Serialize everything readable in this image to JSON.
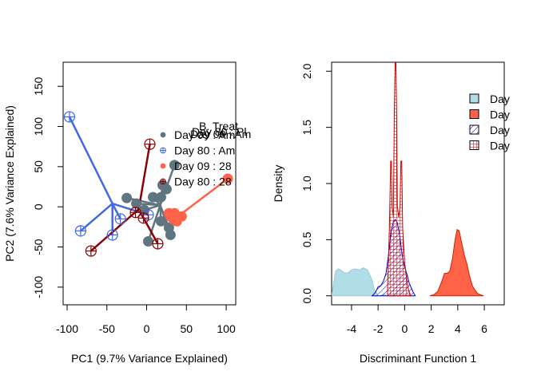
{
  "chart_data": [
    {
      "type": "scatter",
      "xlabel": "PC1 (9.7% Variance Explained)",
      "ylabel": "PC2 (7.6% Variance Explained)",
      "xlim": [
        -105,
        112
      ],
      "ylim": [
        -122,
        180
      ],
      "xticks": [
        -100,
        -50,
        0,
        50,
        100
      ],
      "xtick_labels": [
        "-100",
        "-50",
        "0",
        "50",
        "100"
      ],
      "yticks": [
        -100,
        -50,
        0,
        50,
        100,
        150
      ],
      "ytick_labels": [
        "-100",
        "-50",
        "0",
        "50",
        "100",
        "150"
      ],
      "legend": {
        "overprinted_title": [
          "B. Treat",
          "Day 09 : Am",
          "Day 80 : Pl"
        ],
        "placement": "right",
        "entries": [
          {
            "label": "Day 09 : Am",
            "marker": "filled-circle",
            "color": "#5F7580"
          },
          {
            "label": "Day 80 : Am",
            "marker": "crossed-circle",
            "color": "#4169E1"
          },
          {
            "label": "Day 09 : 28",
            "marker": "filled-circle",
            "color": "#FF6347"
          },
          {
            "label": "Day 80 : 28",
            "marker": "crossed-circle",
            "color": "#8B0000"
          }
        ]
      },
      "series": [
        {
          "group": "Day 09 : Am",
          "marker": "filled-circle",
          "color": "#5F7580",
          "centroid": [
            17,
            2
          ],
          "points": [
            [
              -25,
              11
            ],
            [
              -13,
              4
            ],
            [
              -3,
              -4
            ],
            [
              8,
              12
            ],
            [
              18,
              12
            ],
            [
              25,
              22
            ],
            [
              35,
              52
            ],
            [
              20,
              27
            ],
            [
              30,
              -35
            ],
            [
              2,
              -43
            ],
            [
              18,
              -18
            ],
            [
              28,
              -26
            ]
          ]
        },
        {
          "group": "Day 80 : Am",
          "marker": "crossed-circle",
          "color": "#4169E1",
          "centroid": [
            -43,
            4
          ],
          "points": [
            [
              -97,
              112
            ],
            [
              -83,
              -30
            ],
            [
              -43,
              -35
            ],
            [
              -33,
              -15
            ],
            [
              2,
              -10
            ]
          ]
        },
        {
          "group": "Day 09 : 28",
          "marker": "filled-circle",
          "color": "#FF6347",
          "centroid": [
            38,
            -13
          ],
          "points": [
            [
              102,
              35
            ],
            [
              30,
              -12
            ],
            [
              35,
              -8
            ],
            [
              40,
              -13
            ],
            [
              44,
              -12
            ],
            [
              38,
              -18
            ],
            [
              33,
              -15
            ],
            [
              28,
              -8
            ]
          ]
        },
        {
          "group": "Day 80 : 28",
          "marker": "crossed-circle",
          "color": "#8B0000",
          "centroid": [
            -10,
            -3
          ],
          "points": [
            [
              4,
              78
            ],
            [
              -70,
              -55
            ],
            [
              14,
              -46
            ],
            [
              -4,
              -14
            ],
            [
              -14,
              -7
            ]
          ]
        }
      ]
    },
    {
      "type": "area",
      "xlabel": "Discriminant Function 1",
      "ylabel": "Density",
      "xlim": [
        -5.5,
        7.5
      ],
      "ylim": [
        -0.08,
        2.08
      ],
      "xticks": [
        -4,
        -2,
        0,
        2,
        4,
        6
      ],
      "xtick_labels": [
        "-4",
        "-2",
        "0",
        "2",
        "4",
        "6"
      ],
      "yticks": [
        0,
        0.5,
        1,
        1.5,
        2
      ],
      "ytick_labels": [
        "0.0",
        "0.5",
        "1.0",
        "1.5",
        "2.0"
      ],
      "legend": {
        "placement": "top-right",
        "entries": [
          {
            "label": "Day",
            "fill": "#B0DDE6",
            "border": "#000000",
            "hatch": false
          },
          {
            "label": "Day",
            "fill": "#FF6347",
            "border": "#000000",
            "hatch": false
          },
          {
            "label": "Day",
            "fill": "#0000CC",
            "border": "#000000",
            "hatch": true
          },
          {
            "label": "Day",
            "fill": "#CC0000",
            "border": "#000000",
            "hatch": true
          }
        ]
      },
      "series": [
        {
          "group": "light blue",
          "fill": "#B0DDE6",
          "stroke": "#9CC8D2",
          "hatch": false,
          "x": [
            -5.5,
            -5.2,
            -5.0,
            -4.8,
            -4.5,
            -4.2,
            -4.0,
            -3.7,
            -3.4,
            -3.1,
            -2.8,
            -2.6,
            -2.45,
            -2.3,
            -2.15,
            -2.0,
            -1.85,
            -1.7,
            -1.55,
            -1.4
          ],
          "y": [
            0.0,
            0.22,
            0.24,
            0.23,
            0.2,
            0.21,
            0.23,
            0.24,
            0.23,
            0.25,
            0.23,
            0.18,
            0.14,
            0.06,
            0.03,
            0.0,
            0.0,
            0.01,
            0.02,
            0.0
          ]
        },
        {
          "group": "tomato",
          "fill": "#FF6347",
          "stroke": "#CC2200",
          "hatch": false,
          "x": [
            1.9,
            2.2,
            2.5,
            2.8,
            3.0,
            3.2,
            3.4,
            3.6,
            3.8,
            3.95,
            4.1,
            4.3,
            4.5,
            4.7,
            4.9,
            5.1,
            5.3,
            5.5,
            5.7,
            5.95
          ],
          "y": [
            0.0,
            0.01,
            0.04,
            0.13,
            0.2,
            0.2,
            0.22,
            0.33,
            0.5,
            0.59,
            0.58,
            0.47,
            0.36,
            0.28,
            0.17,
            0.09,
            0.05,
            0.02,
            0.01,
            0.0
          ]
        },
        {
          "group": "blue hatched",
          "fill": "#0000CC",
          "stroke": "#0000CC",
          "hatch": true,
          "x": [
            -2.45,
            -2.2,
            -2.0,
            -1.8,
            -1.6,
            -1.4,
            -1.2,
            -1.0,
            -0.85,
            -0.7,
            -0.55,
            -0.4,
            -0.25,
            -0.1,
            0.05,
            0.2,
            0.35,
            0.5,
            0.65,
            0.8
          ],
          "y": [
            0.0,
            0.03,
            0.08,
            0.09,
            0.13,
            0.2,
            0.38,
            0.58,
            0.66,
            0.68,
            0.65,
            0.56,
            0.42,
            0.3,
            0.24,
            0.18,
            0.11,
            0.07,
            0.03,
            0.0
          ]
        },
        {
          "group": "red hatched",
          "fill": "#CC0000",
          "stroke": "#CC0000",
          "hatch": true,
          "x": [
            -1.3,
            -1.15,
            -1.05,
            -1.0,
            -0.95,
            -0.85,
            -0.78,
            -0.72,
            -0.66,
            -0.6,
            -0.55,
            -0.45,
            -0.35,
            -0.28,
            -0.22,
            -0.15,
            0.0,
            0.15,
            0.3,
            0.45
          ],
          "y": [
            0.0,
            0.6,
            1.2,
            1.2,
            0.8,
            0.7,
            1.6,
            2.08,
            2.08,
            1.6,
            0.8,
            0.7,
            0.8,
            1.2,
            1.2,
            0.6,
            0.3,
            0.15,
            0.05,
            0.0
          ]
        }
      ]
    }
  ]
}
